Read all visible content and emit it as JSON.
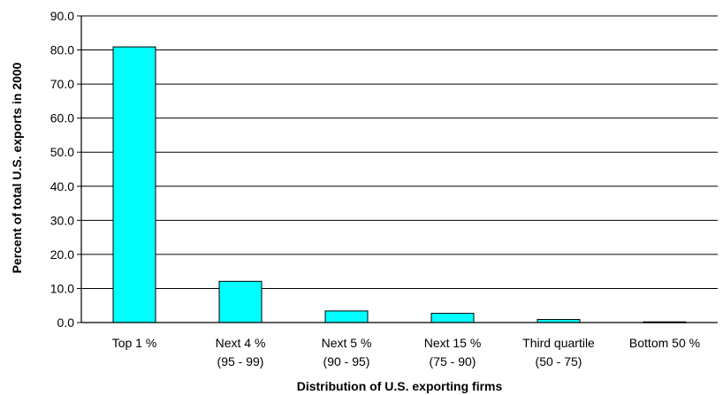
{
  "chart_data": {
    "type": "bar",
    "title": "",
    "xlabel": "Distribution of U.S. exporting firms",
    "ylabel": "Percent of total U.S. exports in 2000",
    "categories": [
      [
        "Top 1 %",
        ""
      ],
      [
        "Next 4 %",
        "(95 - 99)"
      ],
      [
        "Next 5 %",
        "(90 - 95)"
      ],
      [
        "Next 15 %",
        "(75 - 90)"
      ],
      [
        "Third quartile",
        "(50 - 75)"
      ],
      [
        "Bottom 50 %",
        ""
      ]
    ],
    "values": [
      80.9,
      12.1,
      3.4,
      2.7,
      0.9,
      0.2
    ],
    "ylim": [
      0,
      90
    ],
    "yticks": [
      "0.0",
      "10.0",
      "20.0",
      "30.0",
      "40.0",
      "50.0",
      "60.0",
      "70.0",
      "80.0",
      "90.0"
    ],
    "grid": true,
    "legend": "none",
    "colors": {
      "bar_fill": "#00ffff",
      "bar_stroke": "#000000",
      "grid": "#000000",
      "axis": "#000000"
    }
  }
}
